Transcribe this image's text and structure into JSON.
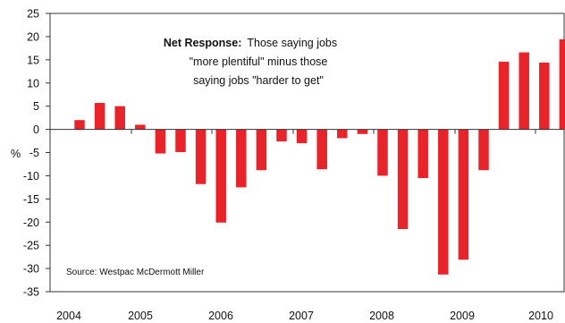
{
  "chart_data": {
    "type": "bar",
    "title": "",
    "xlabel": "",
    "ylabel": "%",
    "ylim": [
      -35,
      25
    ],
    "yticks": [
      25,
      20,
      15,
      10,
      5,
      0,
      -5,
      -10,
      -15,
      -20,
      -25,
      -30,
      -35
    ],
    "year_labels": [
      "2004",
      "2005",
      "2006",
      "2007",
      "2008",
      "2009",
      "2010"
    ],
    "bar_color": "#e8232a",
    "grid": false,
    "series": [
      {
        "values": [
          2.0,
          5.7,
          5.0,
          1.0,
          -5.2,
          -4.9,
          -11.8,
          -20.1,
          -12.5,
          -8.8,
          -2.6,
          -3.0,
          -8.6,
          -1.9,
          -1.0,
          -10.0,
          -21.5,
          -10.5,
          -31.3,
          -28.1,
          -8.8,
          14.6,
          16.6,
          14.4,
          19.4
        ]
      }
    ],
    "annotation": {
      "bold": "Net Response:",
      "line1": "Those saying jobs",
      "line2": "\"more plentiful\" minus those",
      "line3": "saying jobs \"harder to get\""
    },
    "source": "Source:  Westpac McDermott Miller"
  }
}
